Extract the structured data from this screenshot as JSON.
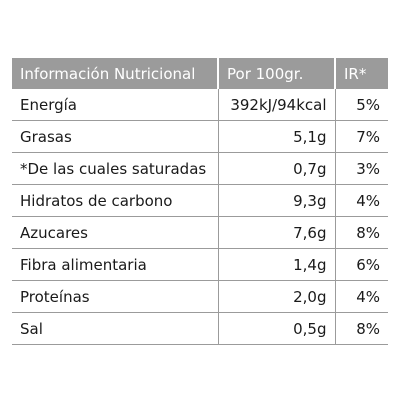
{
  "table": {
    "header": [
      "Información Nutricional",
      "Por 100gr.",
      "IR*"
    ],
    "rows": [
      [
        "Energía",
        "392kJ/94kcal",
        "5%"
      ],
      [
        "Grasas",
        "5,1g",
        "7%"
      ],
      [
        "*De las cuales saturadas",
        "0,7g",
        "3%"
      ],
      [
        "Hidratos de carbono",
        "9,3g",
        "4%"
      ],
      [
        "Azucares",
        "7,6g",
        "8%"
      ],
      [
        "Fibra alimentaria",
        "1,4g",
        "6%"
      ],
      [
        "Proteínas",
        "2,0g",
        "4%"
      ],
      [
        "Sal",
        "0,5g",
        "8%"
      ]
    ]
  }
}
